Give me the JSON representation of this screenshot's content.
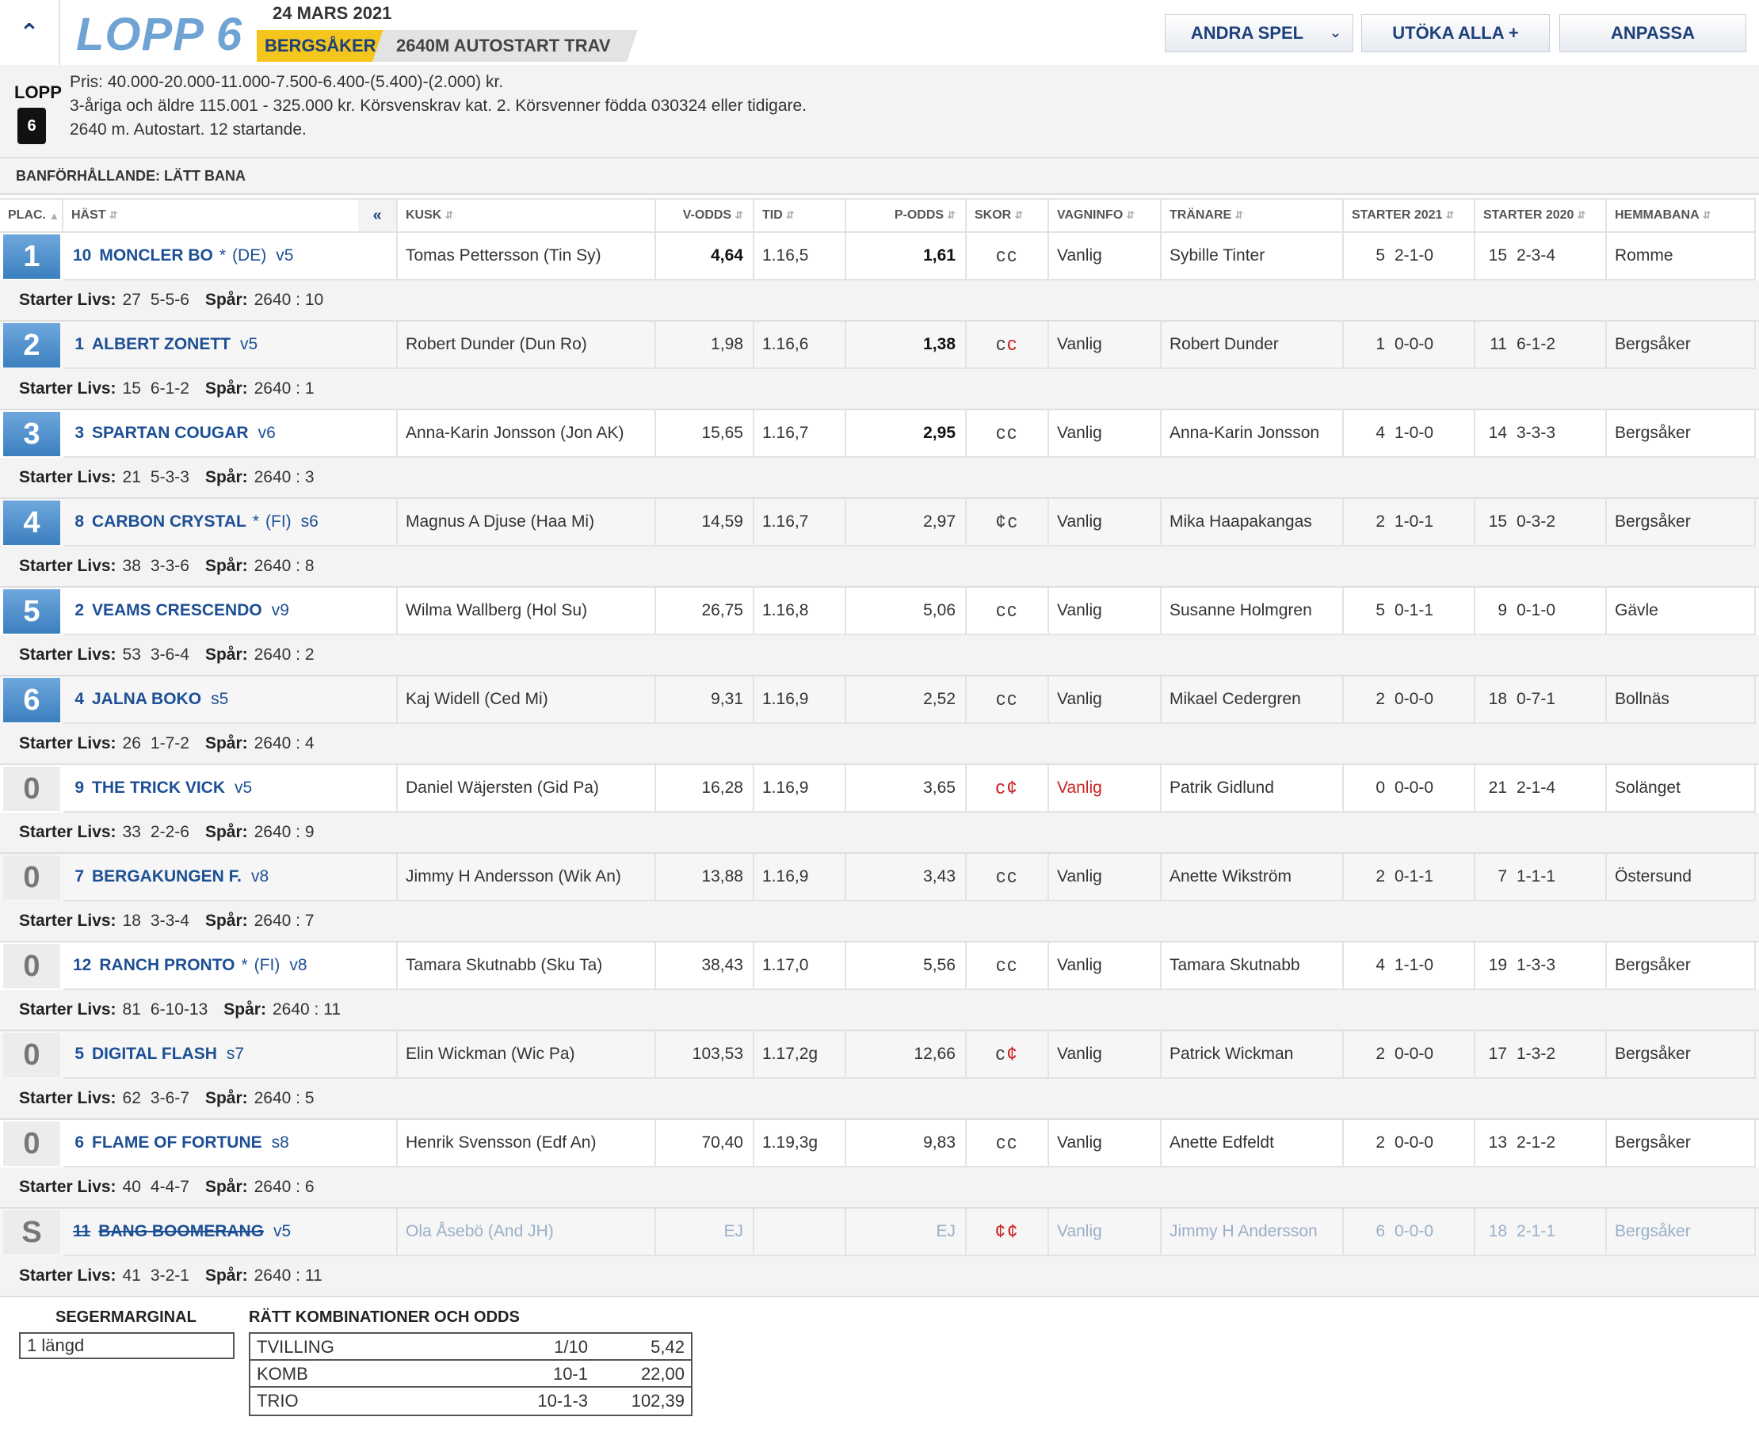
{
  "header": {
    "collapse_icon": "chevron-double-up-icon",
    "title": "LOPP 6",
    "date": "24 MARS 2021",
    "track": "BERGSÅKER",
    "distance": "2640M AUTOSTART TRAV",
    "buttons": {
      "andra_spel": "ANDRA SPEL",
      "utoka_alla": "UTÖKA ALLA +",
      "anpassa": "ANPASSA"
    }
  },
  "info": {
    "lopp_label": "LOPP",
    "lopp_number": "6",
    "line1": "Pris: 40.000-20.000-11.000-7.500-6.400-(5.400)-(2.000) kr.",
    "line2": "3-åriga och äldre 115.001 - 325.000 kr. Körsvenskrav kat. 2. Körsvenner födda 030324 eller tidigare.",
    "line3": "2640 m. Autostart. 12 startande."
  },
  "condition": "BANFÖRHÅLLANDE: LÄTT BANA",
  "columns": {
    "plac": "PLAC.",
    "hast": "HÄST",
    "collapse": "«",
    "kusk": "KUSK",
    "vodds": "V-ODDS",
    "tid": "TID",
    "podds": "P-ODDS",
    "skor": "SKOR",
    "vagninfo": "VAGNINFO",
    "tranare": "TRÄNARE",
    "starter2021": "STARTER 2021",
    "starter2020": "STARTER 2020",
    "hemmabana": "HEMMABANA"
  },
  "labels": {
    "starter_livs": "Starter Livs:",
    "spar": "Spår:"
  },
  "runners": [
    {
      "place": "1",
      "num": "10",
      "name": "MONCLER BO",
      "star": "*",
      "origin": "(DE)",
      "shape": "v5",
      "driver": "Tomas Pettersson (Tin Sy)",
      "vodds": "4,64",
      "vodds_bold": true,
      "tid": "1.16,5",
      "podds": "1,61",
      "podds_bold": true,
      "shoe": [
        "c",
        "c"
      ],
      "wagon": "Vanlig",
      "trainer": "Sybille Tinter",
      "s21n": "5",
      "s21r": "2-1-0",
      "s20n": "15",
      "s20r": "2-3-4",
      "home": "Romme",
      "livs_n": "27",
      "livs_r": "5-5-6",
      "spar": "2640 : 10"
    },
    {
      "place": "2",
      "num": "1",
      "name": "ALBERT ZONETT",
      "star": "",
      "origin": "",
      "shape": "v5",
      "driver": "Robert Dunder (Dun Ro)",
      "vodds": "1,98",
      "vodds_bold": false,
      "tid": "1.16,6",
      "podds": "1,38",
      "podds_bold": true,
      "shoe": [
        "c",
        "c-red"
      ],
      "wagon": "Vanlig",
      "trainer": "Robert Dunder",
      "s21n": "1",
      "s21r": "0-0-0",
      "s20n": "11",
      "s20r": "6-1-2",
      "home": "Bergsåker",
      "livs_n": "15",
      "livs_r": "6-1-2",
      "spar": "2640 : 1"
    },
    {
      "place": "3",
      "num": "3",
      "name": "SPARTAN COUGAR",
      "star": "",
      "origin": "",
      "shape": "v6",
      "driver": "Anna-Karin Jonsson (Jon AK)",
      "vodds": "15,65",
      "vodds_bold": false,
      "tid": "1.16,7",
      "podds": "2,95",
      "podds_bold": true,
      "shoe": [
        "c",
        "c"
      ],
      "wagon": "Vanlig",
      "trainer": "Anna-Karin Jonsson",
      "s21n": "4",
      "s21r": "1-0-0",
      "s20n": "14",
      "s20r": "3-3-3",
      "home": "Bergsåker",
      "livs_n": "21",
      "livs_r": "5-3-3",
      "spar": "2640 : 3"
    },
    {
      "place": "4",
      "num": "8",
      "name": "CARBON CRYSTAL",
      "star": "*",
      "origin": "(FI)",
      "shape": "s6",
      "driver": "Magnus A Djuse (Haa Mi)",
      "vodds": "14,59",
      "vodds_bold": false,
      "tid": "1.16,7",
      "podds": "2,97",
      "podds_bold": false,
      "shoe": [
        "¢",
        "c"
      ],
      "wagon": "Vanlig",
      "trainer": "Mika Haapakangas",
      "s21n": "2",
      "s21r": "1-0-1",
      "s20n": "15",
      "s20r": "0-3-2",
      "home": "Bergsåker",
      "livs_n": "38",
      "livs_r": "3-3-6",
      "spar": "2640 : 8"
    },
    {
      "place": "5",
      "num": "2",
      "name": "VEAMS CRESCENDO",
      "star": "",
      "origin": "",
      "shape": "v9",
      "driver": "Wilma Wallberg (Hol Su)",
      "vodds": "26,75",
      "vodds_bold": false,
      "tid": "1.16,8",
      "podds": "5,06",
      "podds_bold": false,
      "shoe": [
        "c",
        "c"
      ],
      "wagon": "Vanlig",
      "trainer": "Susanne Holmgren",
      "s21n": "5",
      "s21r": "0-1-1",
      "s20n": "9",
      "s20r": "0-1-0",
      "home": "Gävle",
      "livs_n": "53",
      "livs_r": "3-6-4",
      "spar": "2640 : 2"
    },
    {
      "place": "6",
      "num": "4",
      "name": "JALNA BOKO",
      "star": "",
      "origin": "",
      "shape": "s5",
      "driver": "Kaj Widell (Ced Mi)",
      "vodds": "9,31",
      "vodds_bold": false,
      "tid": "1.16,9",
      "podds": "2,52",
      "podds_bold": false,
      "shoe": [
        "c",
        "c"
      ],
      "wagon": "Vanlig",
      "trainer": "Mikael Cedergren",
      "s21n": "2",
      "s21r": "0-0-0",
      "s20n": "18",
      "s20r": "0-7-1",
      "home": "Bollnäs",
      "livs_n": "26",
      "livs_r": "1-7-2",
      "spar": "2640 : 4"
    },
    {
      "place": "0",
      "num": "9",
      "name": "THE TRICK VICK",
      "star": "",
      "origin": "",
      "shape": "v5",
      "driver": "Daniel Wäjersten (Gid Pa)",
      "vodds": "16,28",
      "vodds_bold": false,
      "tid": "1.16,9",
      "podds": "3,65",
      "podds_bold": false,
      "shoe": [
        "c-red",
        "¢-red"
      ],
      "wagon": "Vanlig",
      "wagon_red": true,
      "trainer": "Patrik Gidlund",
      "s21n": "0",
      "s21r": "0-0-0",
      "s20n": "21",
      "s20r": "2-1-4",
      "home": "Solänget",
      "livs_n": "33",
      "livs_r": "2-2-6",
      "spar": "2640 : 9"
    },
    {
      "place": "0",
      "num": "7",
      "name": "BERGAKUNGEN F.",
      "star": "",
      "origin": "",
      "shape": "v8",
      "driver": "Jimmy H Andersson (Wik An)",
      "vodds": "13,88",
      "vodds_bold": false,
      "tid": "1.16,9",
      "podds": "3,43",
      "podds_bold": false,
      "shoe": [
        "c",
        "c"
      ],
      "wagon": "Vanlig",
      "trainer": "Anette Wikström",
      "s21n": "2",
      "s21r": "0-1-1",
      "s20n": "7",
      "s20r": "1-1-1",
      "home": "Östersund",
      "livs_n": "18",
      "livs_r": "3-3-4",
      "spar": "2640 : 7"
    },
    {
      "place": "0",
      "num": "12",
      "name": "RANCH PRONTO",
      "star": "*",
      "origin": "(FI)",
      "shape": "v8",
      "driver": "Tamara Skutnabb (Sku Ta)",
      "vodds": "38,43",
      "vodds_bold": false,
      "tid": "1.17,0",
      "podds": "5,56",
      "podds_bold": false,
      "shoe": [
        "c",
        "c"
      ],
      "wagon": "Vanlig",
      "trainer": "Tamara Skutnabb",
      "s21n": "4",
      "s21r": "1-1-0",
      "s20n": "19",
      "s20r": "1-3-3",
      "home": "Bergsåker",
      "livs_n": "81",
      "livs_r": "6-10-13",
      "spar": "2640 : 11"
    },
    {
      "place": "0",
      "num": "5",
      "name": "DIGITAL FLASH",
      "star": "",
      "origin": "",
      "shape": "s7",
      "driver": "Elin Wickman (Wic Pa)",
      "vodds": "103,53",
      "vodds_bold": false,
      "tid": "1.17,2g",
      "podds": "12,66",
      "podds_bold": false,
      "shoe": [
        "c",
        "¢-red"
      ],
      "wagon": "Vanlig",
      "trainer": "Patrick Wickman",
      "s21n": "2",
      "s21r": "0-0-0",
      "s20n": "17",
      "s20r": "1-3-2",
      "home": "Bergsåker",
      "livs_n": "62",
      "livs_r": "3-6-7",
      "spar": "2640 : 5"
    },
    {
      "place": "0",
      "num": "6",
      "name": "FLAME OF FORTUNE",
      "star": "",
      "origin": "",
      "shape": "s8",
      "driver": "Henrik Svensson (Edf An)",
      "vodds": "70,40",
      "vodds_bold": false,
      "tid": "1.19,3g",
      "podds": "9,83",
      "podds_bold": false,
      "shoe": [
        "c",
        "c"
      ],
      "wagon": "Vanlig",
      "trainer": "Anette Edfeldt",
      "s21n": "2",
      "s21r": "0-0-0",
      "s20n": "13",
      "s20r": "2-1-2",
      "home": "Bergsåker",
      "livs_n": "40",
      "livs_r": "4-4-7",
      "spar": "2640 : 6"
    },
    {
      "place": "S",
      "num": "11",
      "name": "BANG BOOMERANG",
      "star": "",
      "origin": "",
      "shape": "v5",
      "driver": "Ola Åsebö (And JH)",
      "vodds": "EJ",
      "vodds_bold": false,
      "tid": "",
      "podds": "EJ",
      "podds_bold": false,
      "shoe": [
        "¢-red",
        "¢-red"
      ],
      "wagon": "Vanlig",
      "trainer": "Jimmy H Andersson",
      "s21n": "6",
      "s21r": "0-0-0",
      "s20n": "18",
      "s20r": "2-1-1",
      "home": "Bergsåker",
      "livs_n": "41",
      "livs_r": "3-2-1",
      "spar": "2640 : 11",
      "scratched": true
    }
  ],
  "footer": {
    "margin_title": "SEGERMARGINAL",
    "margin_value": "1 längd",
    "combo_title": "RÄTT KOMBINATIONER OCH ODDS",
    "combos": [
      {
        "type": "TVILLING",
        "combo": "1/10",
        "odds": "5,42"
      },
      {
        "type": "KOMB",
        "combo": "10-1",
        "odds": "22,00"
      },
      {
        "type": "TRIO",
        "combo": "10-1-3",
        "odds": "102,39"
      }
    ]
  }
}
